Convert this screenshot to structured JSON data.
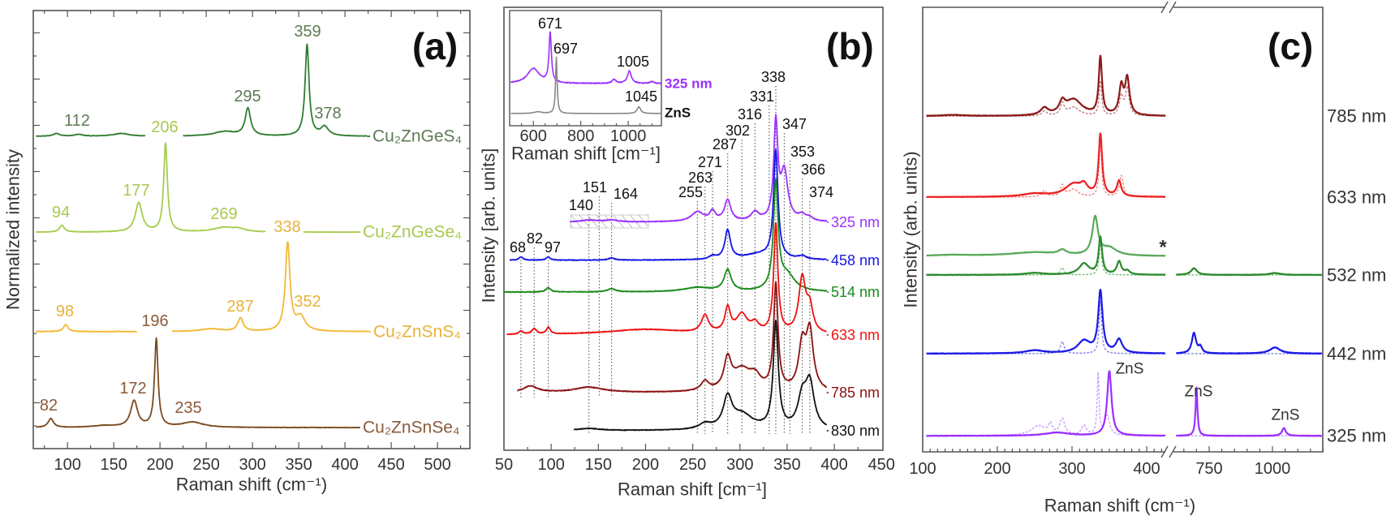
{
  "chart_data": [
    {
      "panel_label": "(a)",
      "type": "line",
      "xlabel": "Raman shift (cm⁻¹)",
      "ylabel": "Normalized intensity",
      "xlim": [
        63,
        535
      ],
      "ylim": [
        0,
        100
      ],
      "xticks": [
        "100",
        "150",
        "200",
        "250",
        "300",
        "350",
        "400",
        "450",
        "500"
      ],
      "series": [
        {
          "name": "Cu₂ZnGeS₄",
          "color": "#2f7d2f",
          "label_color": "#5d7b55",
          "offset": 71.3,
          "height": 21,
          "x_range": [
            66,
            424
          ],
          "gaps": [
            [
              184,
              225
            ]
          ],
          "peaks": [
            [
              359,
              1,
              2.6
            ],
            [
              295,
              0.3,
              3.5
            ],
            [
              378,
              0.1,
              5
            ],
            [
              88,
              0.03,
              4
            ],
            [
              112,
              0.02,
              5
            ],
            [
              158,
              0.03,
              10
            ],
            [
              270,
              0.05,
              14
            ]
          ],
          "peak_labels": [
            "359",
            "295",
            "378",
            "112"
          ]
        },
        {
          "name": "Cu₂ZnGeSe₄",
          "color": "#a6cc4e",
          "label_color": "#a9c94f",
          "offset": 49.4,
          "height": 20.4,
          "x_range": [
            66,
            413
          ],
          "gaps": [
            [
              314,
              355
            ]
          ],
          "peaks": [
            [
              206,
              1,
              2.4
            ],
            [
              177,
              0.33,
              4.5
            ],
            [
              94,
              0.08,
              3
            ],
            [
              269,
              0.05,
              14
            ],
            [
              285,
              0.03,
              8
            ]
          ],
          "peak_labels": [
            "206",
            "177",
            "94",
            "269"
          ]
        },
        {
          "name": "Cu₂ZnSnS₄",
          "color": "#f5b733",
          "label_color": "#e8b23a",
          "offset": 26.7,
          "height": 20.5,
          "x_range": [
            66,
            426
          ],
          "gaps": [
            [
              175,
              213
            ]
          ],
          "peaks": [
            [
              338,
              1,
              3
            ],
            [
              287,
              0.15,
              3.5
            ],
            [
              352,
              0.16,
              6
            ],
            [
              98,
              0.08,
              3
            ],
            [
              255,
              0.03,
              14
            ]
          ],
          "peak_labels": [
            "338",
            "287",
            "352",
            "98"
          ]
        },
        {
          "name": "Cu₂ZnSnSe₄",
          "color": "#7a4a1e",
          "label_color": "#8a5a3a",
          "offset": 4.8,
          "height": 20.4,
          "x_range": [
            66,
            416
          ],
          "gaps": [],
          "peaks": [
            [
              196,
              1,
              2.3
            ],
            [
              172,
              0.3,
              4.5
            ],
            [
              82,
              0.1,
              3.5
            ],
            [
              235,
              0.06,
              14
            ],
            [
              140,
              0.02,
              14
            ]
          ],
          "peak_labels": [
            "196",
            "172",
            "82",
            "235"
          ]
        }
      ]
    },
    {
      "panel_label": "(b)",
      "type": "line",
      "xlabel": "Raman shift [cm⁻¹]",
      "ylabel": "Intensity [arb. units]",
      "xlim": [
        50,
        451.5
      ],
      "ylim": [
        0,
        100
      ],
      "xticks": [
        "50",
        "100",
        "150",
        "200",
        "250",
        "300",
        "350",
        "400",
        "450"
      ],
      "peak_positions": [
        "68",
        "82",
        "97",
        "140",
        "151",
        "164",
        "255",
        "263",
        "271",
        "287",
        "302",
        "316",
        "331",
        "338",
        "347",
        "353",
        "366",
        "374"
      ],
      "series": [
        {
          "name": "325 nm",
          "color": "#9b30ff",
          "offset": 51.5,
          "height": 24.2,
          "x_range": [
            120,
            392
          ],
          "peaks": [
            [
              338,
              1,
              2.6
            ],
            [
              347,
              0.5,
              4.5
            ],
            [
              287,
              0.22,
              4
            ],
            [
              271,
              0.1,
              3.5
            ],
            [
              255,
              0.1,
              8
            ],
            [
              316,
              0.09,
              5
            ],
            [
              366,
              0.06,
              5
            ],
            [
              374,
              0.03,
              4
            ],
            [
              140,
              0.02,
              10
            ],
            [
              164,
              0.02,
              8
            ]
          ]
        },
        {
          "name": "458 nm",
          "color": "#1515e6",
          "offset": 42.9,
          "height": 25,
          "x_range": [
            56,
            392
          ],
          "peaks": [
            [
              338,
              1,
              2.8
            ],
            [
              287,
              0.27,
              3.5
            ],
            [
              68,
              0.03,
              2.5
            ],
            [
              97,
              0.03,
              2.5
            ],
            [
              164,
              0.02,
              4
            ],
            [
              271,
              0.03,
              4
            ],
            [
              366,
              0.03,
              5
            ],
            [
              320,
              0.05,
              20
            ]
          ]
        },
        {
          "name": "514 nm",
          "color": "#1a8a1a",
          "offset": 35.7,
          "height": 25.5,
          "x_range": [
            50,
            392
          ],
          "peaks": [
            [
              338,
              1,
              3
            ],
            [
              287,
              0.2,
              4.5
            ],
            [
              97,
              0.04,
              3
            ],
            [
              164,
              0.03,
              5
            ],
            [
              255,
              0.04,
              18
            ],
            [
              350,
              0.15,
              10
            ]
          ]
        },
        {
          "name": "633 nm",
          "color": "#ee1111",
          "offset": 26,
          "height": 25.3,
          "x_range": [
            53,
            392
          ],
          "peaks": [
            [
              338,
              1,
              2.6
            ],
            [
              366,
              0.5,
              4.5
            ],
            [
              374,
              0.22,
              4
            ],
            [
              287,
              0.22,
              3.5
            ],
            [
              263,
              0.16,
              4.5
            ],
            [
              302,
              0.17,
              7
            ],
            [
              316,
              0.08,
              5
            ],
            [
              82,
              0.05,
              3
            ],
            [
              97,
              0.06,
              2.5
            ],
            [
              68,
              0.03,
              2.5
            ],
            [
              200,
              0.05,
              50
            ]
          ]
        },
        {
          "name": "785 nm",
          "color": "#8b1010",
          "offset": 13,
          "height": 24.9,
          "x_range": [
            64,
            392
          ],
          "peaks": [
            [
              338,
              1,
              2.8
            ],
            [
              374,
              0.55,
              4.5
            ],
            [
              366,
              0.42,
              4.5
            ],
            [
              287,
              0.28,
              4.5
            ],
            [
              302,
              0.2,
              12
            ],
            [
              263,
              0.09,
              5
            ],
            [
              316,
              0.11,
              7
            ],
            [
              78,
              0.06,
              9
            ],
            [
              140,
              0.05,
              18
            ]
          ]
        },
        {
          "name": "830 nm",
          "color": "#111111",
          "offset": 4.4,
          "height": 24.9,
          "x_range": [
            124,
            392
          ],
          "peaks": [
            [
              338,
              1,
              3.2
            ],
            [
              374,
              0.42,
              5.5
            ],
            [
              366,
              0.28,
              5.5
            ],
            [
              287,
              0.28,
              5.5
            ],
            [
              302,
              0.14,
              14
            ],
            [
              263,
              0.05,
              8
            ],
            [
              140,
              0.02,
              14
            ]
          ]
        }
      ],
      "inset": {
        "xlabel": "Raman shift [cm⁻¹]",
        "xlim": [
          500,
          1140
        ],
        "ylim": [
          0,
          10
        ],
        "xticks": [
          "600",
          "800",
          "1000"
        ],
        "peak_labels": [
          "671",
          "697",
          "1005",
          "1045"
        ],
        "series": [
          {
            "name": "325 nm",
            "color": "#9b30ff",
            "offset": 3.66,
            "height": 4.5,
            "x_range": [
              505,
              1140
            ],
            "peaks": [
              [
                671,
                1,
                6
              ],
              [
                600,
                0.3,
                30
              ],
              [
                940,
                0.08,
                10
              ],
              [
                1005,
                0.25,
                10
              ],
              [
                1100,
                0.04,
                10
              ]
            ]
          },
          {
            "name": "ZnS",
            "color": "#888888",
            "label_color": "#111111",
            "offset": 1.06,
            "height": 4.9,
            "x_range": [
              505,
              1140
            ],
            "peaks": [
              [
                697,
                1,
                4
              ],
              [
                1045,
                0.12,
                9
              ],
              [
                620,
                0.03,
                20
              ]
            ]
          }
        ]
      }
    },
    {
      "panel_label": "(c)",
      "type": "line",
      "xlabel": "Raman shift (cm⁻¹)",
      "ylabel": "Intensity (arb. units)",
      "x_segments": [
        [
          100,
          430
        ],
        [
          615,
          1200
        ]
      ],
      "ylim": [
        0,
        100
      ],
      "xticks": [
        "100",
        "200",
        "300",
        "400",
        "750",
        "1000"
      ],
      "annotations": [
        "ZnS",
        "ZnS",
        "ZnS",
        "*"
      ],
      "series": [
        {
          "name": "785 nm",
          "color": "#8b1a1a",
          "dash_color": "#c08080",
          "offset": 75.5,
          "height": 13.7,
          "segments": [
            "left"
          ],
          "peaks": [
            [
              338,
              1,
              2.6
            ],
            [
              374,
              0.62,
              3.5
            ],
            [
              366,
              0.48,
              3.5
            ],
            [
              302,
              0.28,
              14
            ],
            [
              287,
              0.18,
              4.5
            ],
            [
              263,
              0.12,
              6
            ],
            [
              140,
              0.02,
              20
            ]
          ],
          "dashed_peaks": [
            [
              338,
              0.6,
              2
            ],
            [
              374,
              0.48,
              3
            ],
            [
              366,
              0.33,
              3
            ],
            [
              287,
              0.2,
              3
            ],
            [
              302,
              0.15,
              10
            ],
            [
              263,
              0.08,
              4
            ]
          ]
        },
        {
          "name": "633 nm",
          "color": "#ee2222",
          "dash_color": "#f08a8a",
          "offset": 57.3,
          "height": 14.4,
          "segments": [
            "left"
          ],
          "peaks": [
            [
              338,
              1,
              2.8
            ],
            [
              363,
              0.25,
              3.5
            ],
            [
              302,
              0.2,
              14
            ],
            [
              316,
              0.14,
              6
            ],
            [
              250,
              0.05,
              20
            ]
          ],
          "dashed_peaks": [
            [
              338,
              0.9,
              2
            ],
            [
              366,
              0.35,
              3
            ],
            [
              287,
              0.18,
              3
            ],
            [
              263,
              0.1,
              4
            ],
            [
              302,
              0.12,
              8
            ]
          ]
        },
        {
          "name": "",
          "color": "#5aaa5a",
          "offset": 44,
          "height": 9.1,
          "segments": [
            "left"
          ],
          "peaks": [
            [
              331,
              1,
              4.5
            ],
            [
              287,
              0.12,
              6
            ],
            [
              250,
              0.1,
              40
            ],
            [
              350,
              0.2,
              12
            ],
            [
              140,
              0.03,
              30
            ]
          ]
        },
        {
          "name": "532 nm",
          "color": "#2a8a2a",
          "dash_color": "#7fc07f",
          "offset": 39.8,
          "height": 8.7,
          "segments": [
            "left",
            "right"
          ],
          "peaks": [
            [
              338,
              1,
              2.8
            ],
            [
              363,
              0.35,
              3.5
            ],
            [
              316,
              0.3,
              8
            ],
            [
              374,
              0.1,
              4
            ],
            [
              250,
              0.05,
              15
            ],
            [
              690,
              0.18,
              14
            ],
            [
              1010,
              0.05,
              25
            ]
          ],
          "dashed_peaks": [
            [
              338,
              0.9,
              2
            ],
            [
              287,
              0.2,
              3
            ]
          ]
        },
        {
          "name": "442 nm",
          "color": "#1a1ae6",
          "dash_color": "#8a8af0",
          "offset": 22.1,
          "height": 14.4,
          "segments": [
            "left",
            "right"
          ],
          "peaks": [
            [
              338,
              1,
              3.5
            ],
            [
              363,
              0.22,
              5
            ],
            [
              316,
              0.2,
              10
            ],
            [
              250,
              0.05,
              15
            ],
            [
              690,
              0.33,
              10
            ],
            [
              715,
              0.1,
              8
            ],
            [
              1010,
              0.1,
              25
            ]
          ],
          "dashed_peaks": [
            [
              338,
              0.85,
              2
            ],
            [
              287,
              0.2,
              3
            ]
          ]
        },
        {
          "name": "325 nm",
          "color": "#9b30ff",
          "dash_color": "#c89bff",
          "offset": 3.6,
          "height": 14.6,
          "segments": [
            "left",
            "right"
          ],
          "peaks": [
            [
              350,
              1,
              3.5
            ],
            [
              280,
              0.05,
              20
            ],
            [
              700,
              0.75,
              4.5
            ],
            [
              1045,
              0.12,
              9
            ]
          ],
          "dashed_peaks": [
            [
              335,
              0.95,
              1.5
            ],
            [
              347,
              0.3,
              4
            ],
            [
              287,
              0.25,
              4
            ],
            [
              271,
              0.15,
              3
            ],
            [
              316,
              0.15,
              4
            ],
            [
              255,
              0.15,
              12
            ]
          ]
        }
      ]
    }
  ]
}
